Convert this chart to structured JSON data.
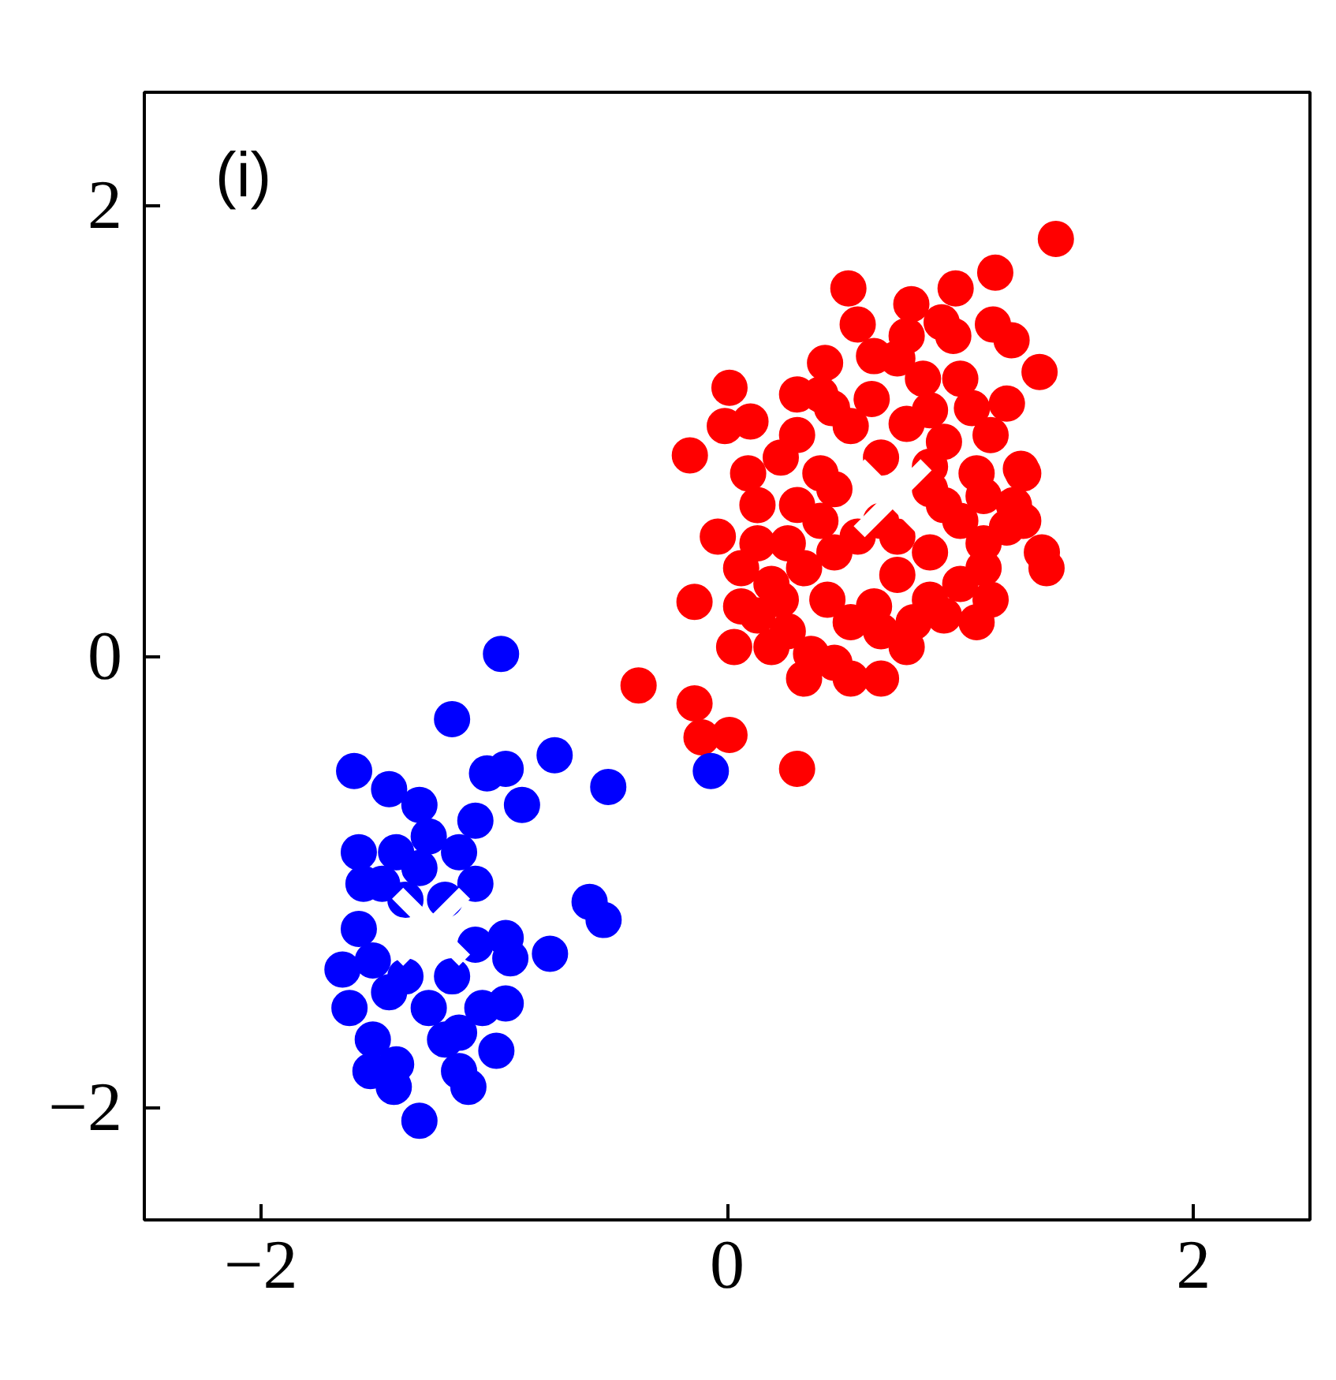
{
  "chart_data": {
    "type": "scatter",
    "annotations": [
      "(i)"
    ],
    "xlim": [
      -2.5,
      2.5
    ],
    "ylim": [
      -2.5,
      2.5
    ],
    "xticks": [
      {
        "value": -2,
        "label": "−2"
      },
      0,
      2
    ],
    "yticks": [
      {
        "value": -2,
        "label": "−2"
      },
      0,
      2
    ],
    "grid": false,
    "marker": "circle",
    "series": [
      {
        "color": "#ff0000",
        "x": [
          1.41,
          0.52,
          0.79,
          0.98,
          1.15,
          0.56,
          0.92,
          0.77,
          1.14,
          1.34,
          0.73,
          0.42,
          0.97,
          1.22,
          0.01,
          0.84,
          0.45,
          0.62,
          1.05,
          1.2,
          0.77,
          -0.16,
          0.1,
          0.3,
          0.53,
          0.93,
          1.13,
          1.26,
          0.09,
          0.23,
          0.4,
          0.66,
          0.87,
          1.07,
          1.23,
          -0.04,
          0.13,
          0.3,
          0.93,
          1.1,
          1.2,
          0.06,
          0.26,
          0.46,
          0.87,
          1.1,
          1.35,
          1.37,
          -0.14,
          0.06,
          0.23,
          0.43,
          0.63,
          0.87,
          1.0,
          1.13,
          0.03,
          0.19,
          0.36,
          0.46,
          0.53,
          0.93,
          -0.38,
          -0.14,
          -0.11,
          0.01,
          0.3,
          0.26,
          0.66,
          0.8,
          1.07,
          0.4,
          0.66,
          1.0,
          0.73,
          0.56,
          0.19,
          0.33,
          0.73,
          1.27,
          0.87,
          0.46,
          0.13,
          0.53,
          0.77,
          1.1,
          0.66,
          0.33,
          0.13,
          0.87,
          1.0,
          0.63,
          0.4,
          1.27,
          0.3,
          -0.01
        ],
        "values": [
          1.85,
          1.63,
          1.56,
          1.63,
          1.7,
          1.47,
          1.48,
          1.42,
          1.47,
          1.26,
          1.32,
          1.3,
          1.42,
          1.4,
          1.19,
          1.23,
          1.1,
          1.14,
          1.1,
          1.12,
          1.03,
          0.89,
          1.04,
          0.98,
          1.02,
          0.95,
          0.98,
          0.83,
          0.81,
          0.88,
          0.81,
          0.88,
          0.84,
          0.81,
          0.67,
          0.53,
          0.67,
          0.67,
          0.67,
          0.71,
          0.57,
          0.39,
          0.5,
          0.46,
          0.46,
          0.5,
          0.46,
          0.39,
          0.24,
          0.22,
          0.25,
          0.25,
          0.22,
          0.25,
          0.32,
          0.25,
          0.04,
          0.04,
          0.01,
          -0.03,
          -0.1,
          0.18,
          -0.13,
          -0.21,
          -0.36,
          -0.35,
          -0.5,
          0.11,
          0.11,
          0.15,
          0.15,
          0.6,
          0.6,
          0.6,
          0.53,
          0.53,
          0.32,
          0.39,
          0.36,
          0.6,
          0.74,
          0.74,
          0.5,
          0.15,
          0.04,
          0.39,
          -0.1,
          -0.1,
          0.18,
          1.09,
          1.23,
          1.33,
          1.16,
          0.81,
          1.16,
          1.02
        ]
      },
      {
        "color": "#0000ff",
        "x": [
          -0.97,
          -1.18,
          -1.6,
          -1.45,
          -1.32,
          -1.03,
          -0.95,
          -0.74,
          -0.51,
          -0.88,
          -1.58,
          -1.42,
          -1.28,
          -1.08,
          -1.56,
          -1.32,
          -1.15,
          -1.65,
          -1.08,
          -0.95,
          -0.76,
          -0.59,
          -0.53,
          -0.93,
          -1.62,
          -1.45,
          -1.28,
          -1.15,
          -0.95,
          -1.52,
          -1.42,
          -1.21,
          -0.99,
          -1.53,
          -1.43,
          -1.15,
          -1.11,
          -1.32,
          -1.48,
          -1.38,
          -1.21,
          -1.08,
          -1.52,
          -1.58,
          -1.38,
          -1.18,
          -1.05,
          -0.07
        ],
        "values": [
          0.01,
          -0.28,
          -0.51,
          -0.59,
          -0.66,
          -0.52,
          -0.5,
          -0.44,
          -0.58,
          -0.66,
          -0.87,
          -0.87,
          -0.8,
          -0.73,
          -1.01,
          -0.94,
          -0.87,
          -1.39,
          -1.28,
          -1.25,
          -1.32,
          -1.09,
          -1.17,
          -1.34,
          -1.56,
          -1.49,
          -1.56,
          -1.67,
          -1.54,
          -1.7,
          -1.81,
          -1.7,
          -1.75,
          -1.84,
          -1.91,
          -1.84,
          -1.91,
          -2.06,
          -1.01,
          -1.08,
          -1.08,
          -1.01,
          -1.35,
          -1.21,
          -1.42,
          -1.42,
          -1.56,
          -0.51
        ]
      },
      {
        "color": "#ffffff",
        "marker": "cross",
        "x": [
          0.71,
          -1.27
        ],
        "values": [
          0.7,
          -1.2
        ]
      }
    ]
  }
}
